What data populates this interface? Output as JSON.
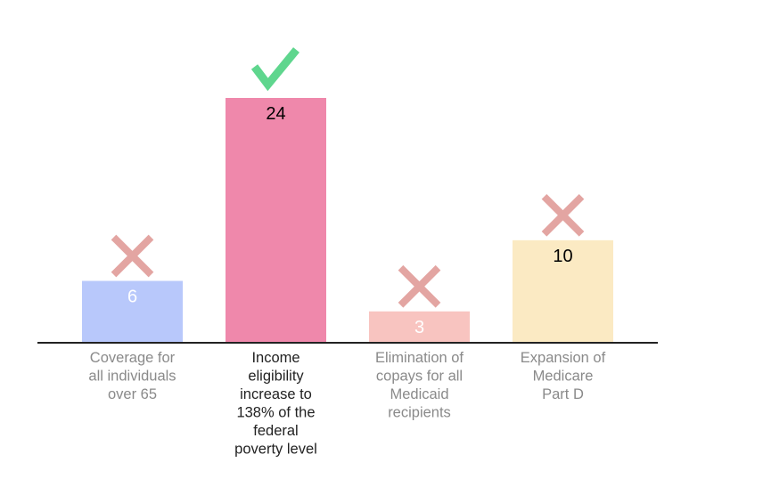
{
  "chart_data": {
    "type": "bar",
    "title": "",
    "xlabel": "",
    "ylabel": "",
    "ylim": [
      0,
      24
    ],
    "grid": false,
    "legend": "none",
    "categories": [
      [
        "Coverage for",
        "all individuals",
        "over 65"
      ],
      [
        "Income",
        "eligibility",
        "increase to",
        "138% of the",
        "federal",
        "poverty level"
      ],
      [
        "Elimination of",
        "copays for all",
        "Medicaid",
        "recipients"
      ],
      [
        "Expansion of",
        "Medicare",
        "Part D"
      ]
    ],
    "values": [
      6,
      24,
      3,
      10
    ],
    "value_labels": [
      "6",
      "24",
      "3",
      "10"
    ],
    "bar_colors": [
      "#b8c8fb",
      "#ef88ab",
      "#f8c4c0",
      "#fbeac3"
    ],
    "value_label_colors": [
      "#ffffff",
      "#000000",
      "#ffffff",
      "#000000"
    ],
    "category_label_colors": [
      "#8a8a8a",
      "#222222",
      "#8a8a8a",
      "#8a8a8a"
    ],
    "markers": [
      "cross",
      "check",
      "cross",
      "cross"
    ],
    "marker_colors": {
      "cross": "#e3a5a2",
      "check": "#5fd68e"
    },
    "correct_index": 1
  }
}
